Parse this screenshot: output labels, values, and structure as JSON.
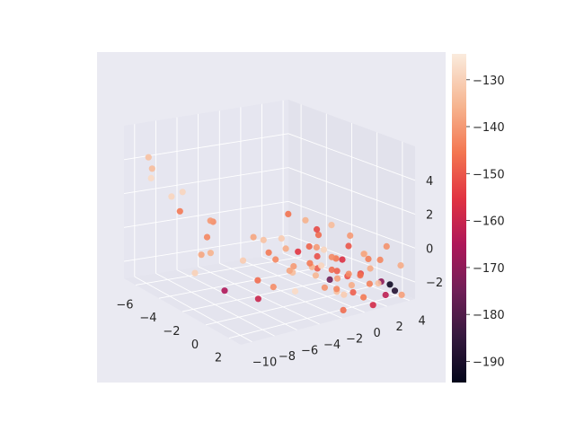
{
  "chart_data": {
    "type": "scatter",
    "projection": "3d",
    "style": "seaborn-darkgrid",
    "grid": true,
    "colormap": "rocket",
    "x_axis": {
      "ticks": [
        -6,
        -4,
        -2,
        0,
        2
      ],
      "tick_labels": [
        "−6",
        "−4",
        "−2",
        "0",
        "2"
      ],
      "range": [
        -7,
        3
      ]
    },
    "y_axis": {
      "ticks": [
        -10,
        -8,
        -6,
        -4,
        -2,
        0,
        2,
        4
      ],
      "tick_labels": [
        "−10",
        "−8",
        "−6",
        "−4",
        "−2",
        "0",
        "2",
        "4"
      ],
      "range": [
        -11,
        4.5
      ]
    },
    "z_axis": {
      "ticks": [
        -2,
        0,
        2,
        4
      ],
      "tick_labels": [
        "−2",
        "0",
        "2",
        "4"
      ],
      "range": [
        -3,
        6
      ]
    },
    "colorbar": {
      "range": [
        -194.5,
        -124.5
      ],
      "ticks": [
        -130,
        -140,
        -150,
        -160,
        -170,
        -180,
        -190
      ],
      "tick_labels": [
        "−130",
        "−140",
        "−150",
        "−160",
        "−170",
        "−180",
        "−190"
      ]
    },
    "points": [
      {
        "x": -6.0,
        "y": -9.8,
        "z": 4.4,
        "c": -133
      },
      {
        "x": -5.6,
        "y": -9.9,
        "z": 3.9,
        "c": -134
      },
      {
        "x": -6.5,
        "y": -9.0,
        "z": 2.9,
        "c": -128
      },
      {
        "x": -4.5,
        "y": -9.3,
        "z": 2.6,
        "c": -129
      },
      {
        "x": -4.2,
        "y": -8.6,
        "z": 2.9,
        "c": -129
      },
      {
        "x": -3.6,
        "y": -9.5,
        "z": 2.1,
        "c": -145
      },
      {
        "x": -2.4,
        "y": -8.0,
        "z": 1.8,
        "c": -140
      },
      {
        "x": -1.2,
        "y": -9.6,
        "z": 1.5,
        "c": -143
      },
      {
        "x": -3.0,
        "y": -7.1,
        "z": 1.4,
        "c": -142
      },
      {
        "x": -1.0,
        "y": -5.6,
        "z": 1.0,
        "c": -138
      },
      {
        "x": -0.8,
        "y": -4.9,
        "z": 0.8,
        "c": -133
      },
      {
        "x": 0.0,
        "y": -5.3,
        "z": 0.4,
        "c": -145
      },
      {
        "x": 0.4,
        "y": -4.2,
        "z": 0.6,
        "c": -137
      },
      {
        "x": -0.5,
        "y": -3.6,
        "z": 0.8,
        "c": -131
      },
      {
        "x": 0.5,
        "y": -3.2,
        "z": 0.3,
        "c": -155
      },
      {
        "x": 0.2,
        "y": -4.9,
        "z": 0.0,
        "c": -143
      },
      {
        "x": 0.6,
        "y": -2.3,
        "z": 0.5,
        "c": -148
      },
      {
        "x": 1.2,
        "y": -2.9,
        "z": -0.2,
        "c": -145
      },
      {
        "x": -2.2,
        "y": -8.2,
        "z": 0.0,
        "c": -136
      },
      {
        "x": -2.8,
        "y": -8.4,
        "z": -0.3,
        "c": -138
      },
      {
        "x": 0.3,
        "y": -1.3,
        "z": 0.2,
        "c": -140
      },
      {
        "x": 0.8,
        "y": -1.8,
        "z": -0.1,
        "c": -151
      },
      {
        "x": 1.4,
        "y": -2.1,
        "z": -0.4,
        "c": -129
      },
      {
        "x": 0.9,
        "y": -0.6,
        "z": -0.3,
        "c": -142
      },
      {
        "x": 1.6,
        "y": -1.0,
        "z": -0.1,
        "c": -145
      },
      {
        "x": 1.1,
        "y": -2.6,
        "z": -0.5,
        "c": -136
      },
      {
        "x": 1.8,
        "y": -1.6,
        "z": -0.6,
        "c": -147
      },
      {
        "x": 0.6,
        "y": -3.8,
        "z": -0.8,
        "c": -134
      },
      {
        "x": 0.9,
        "y": -4.4,
        "z": -0.5,
        "c": -138
      },
      {
        "x": 1.5,
        "y": -0.8,
        "z": -0.9,
        "c": -149
      },
      {
        "x": 1.3,
        "y": -0.1,
        "z": -0.4,
        "c": -156
      },
      {
        "x": 2.0,
        "y": -0.3,
        "z": -1.0,
        "c": -142
      },
      {
        "x": 1.8,
        "y": -1.1,
        "z": -1.2,
        "c": -139
      },
      {
        "x": 2.3,
        "y": 0.4,
        "z": -1.1,
        "c": -147
      },
      {
        "x": 1.1,
        "y": -1.0,
        "z": -1.5,
        "c": -175
      },
      {
        "x": 2.2,
        "y": 1.4,
        "z": -0.9,
        "c": -137
      },
      {
        "x": 1.7,
        "y": 1.1,
        "z": -1.3,
        "c": -152
      },
      {
        "x": 2.6,
        "y": 0.9,
        "z": -1.6,
        "c": -144
      },
      {
        "x": 1.5,
        "y": -1.9,
        "z": -1.7,
        "c": -141
      },
      {
        "x": 2.4,
        "y": 1.9,
        "z": -1.8,
        "c": -133
      },
      {
        "x": 2.9,
        "y": 1.6,
        "z": -1.5,
        "c": -170
      },
      {
        "x": 1.9,
        "y": 0.2,
        "z": -2.2,
        "c": -149
      },
      {
        "x": 2.7,
        "y": 2.6,
        "z": -1.9,
        "c": -192
      },
      {
        "x": 2.8,
        "y": 2.1,
        "z": -2.4,
        "c": -162
      },
      {
        "x": 2.2,
        "y": 0.8,
        "z": -2.5,
        "c": -145
      },
      {
        "x": 1.7,
        "y": -0.4,
        "z": -2.3,
        "c": -131
      },
      {
        "x": 3.0,
        "y": 2.7,
        "z": -2.2,
        "c": -188
      },
      {
        "x": 2.6,
        "y": 1.2,
        "z": -2.9,
        "c": -158
      },
      {
        "x": 3.1,
        "y": 3.2,
        "z": -2.5,
        "c": -139
      },
      {
        "x": 2.1,
        "y": -0.9,
        "z": -3.0,
        "c": -147
      },
      {
        "x": 1.2,
        "y": -0.5,
        "z": -2.1,
        "c": -143
      },
      {
        "x": 1.6,
        "y": 0.4,
        "z": -1.9,
        "c": -137
      },
      {
        "x": 0.4,
        "y": -1.5,
        "z": -1.4,
        "c": -135
      },
      {
        "x": -0.1,
        "y": -2.8,
        "z": -2.3,
        "c": -128
      },
      {
        "x": -0.8,
        "y": -4.0,
        "z": -2.1,
        "c": -142
      },
      {
        "x": -0.5,
        "y": -2.5,
        "z": -1.0,
        "c": -140
      },
      {
        "x": 0.0,
        "y": -0.9,
        "z": -1.2,
        "c": -149
      },
      {
        "x": 1.0,
        "y": 0.7,
        "z": -1.6,
        "c": -151
      },
      {
        "x": 0.5,
        "y": 0.3,
        "z": -2.6,
        "c": -133
      },
      {
        "x": -1.6,
        "y": -4.5,
        "z": -3.0,
        "c": -160
      },
      {
        "x": -2.4,
        "y": -6.7,
        "z": -2.5,
        "c": -165
      },
      {
        "x": -2.6,
        "y": -9.2,
        "z": -1.2,
        "c": -130
      },
      {
        "x": 1.4,
        "y": -2.5,
        "z": 1.8,
        "c": -152
      },
      {
        "x": 0.9,
        "y": -1.8,
        "z": 1.2,
        "c": -147
      },
      {
        "x": 1.9,
        "y": -0.2,
        "z": 0.6,
        "c": -150
      },
      {
        "x": 2.5,
        "y": 0.5,
        "z": 0.2,
        "c": -138
      },
      {
        "x": 2.1,
        "y": 1.0,
        "z": 0.0,
        "c": -131
      },
      {
        "x": 2.9,
        "y": 1.5,
        "z": -0.2,
        "c": -143
      },
      {
        "x": 1.3,
        "y": 0.6,
        "z": 0.9,
        "c": -140
      },
      {
        "x": 0.2,
        "y": -2.2,
        "z": 1.9,
        "c": -136
      },
      {
        "x": -0.4,
        "y": -3.1,
        "z": 2.2,
        "c": -146
      },
      {
        "x": 0.7,
        "y": -0.4,
        "z": 1.5,
        "c": -134
      },
      {
        "x": 2.7,
        "y": 2.3,
        "z": 0.4,
        "c": -141
      },
      {
        "x": 3.2,
        "y": 3.0,
        "z": -0.7,
        "c": -137
      },
      {
        "x": 1.6,
        "y": 1.9,
        "z": -0.6,
        "c": -144
      },
      {
        "x": -1.5,
        "y": -6.0,
        "z": -0.5,
        "c": -131
      },
      {
        "x": -1.0,
        "y": -5.2,
        "z": -1.6,
        "c": -147
      },
      {
        "x": 0.8,
        "y": -1.2,
        "z": 0.2,
        "c": -129
      }
    ]
  }
}
